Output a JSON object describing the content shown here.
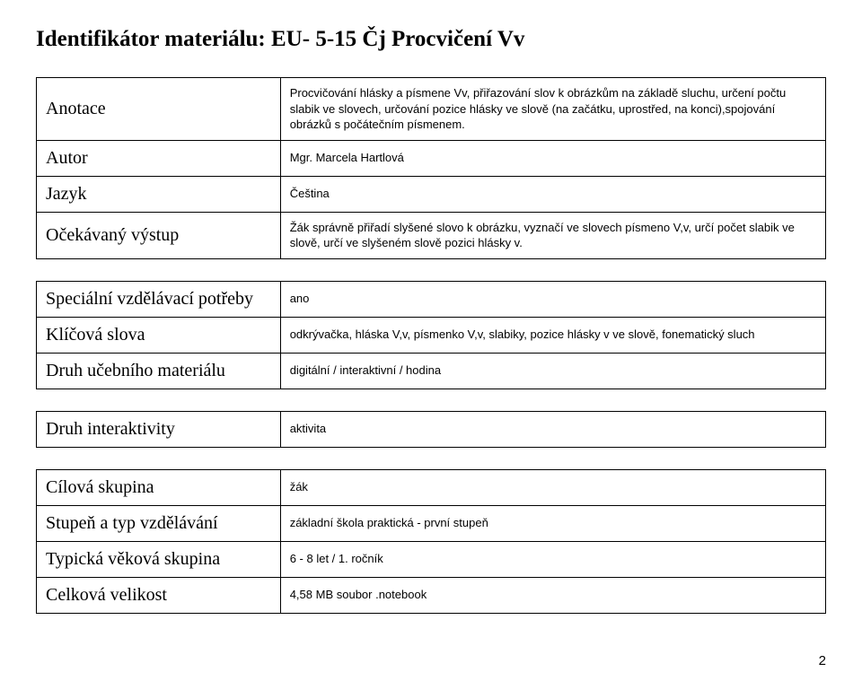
{
  "document": {
    "title": "Identifikátor materiálu: EU- 5-15 Čj  Procvičení Vv",
    "page_number": "2",
    "colors": {
      "background": "#ffffff",
      "text": "#000000",
      "border": "#000000"
    },
    "typography": {
      "title_fontfamily": "Times New Roman",
      "title_fontsize_pt": 19,
      "label_fontfamily": "Times New Roman",
      "label_fontsize_pt": 15,
      "value_fontfamily": "Arial",
      "value_fontsize_pt": 10
    },
    "tables": [
      {
        "rows": [
          {
            "label": "Anotace",
            "value": "Procvičování hlásky a písmene Vv, přiřazování slov k obrázkům na základě sluchu, určení počtu slabik ve slovech, určování pozice hlásky ve slově (na začátku, uprostřed, na konci),spojování obrázků s počátečním písmenem."
          },
          {
            "label": "Autor",
            "value": "Mgr. Marcela Hartlová"
          },
          {
            "label": "Jazyk",
            "value": "Čeština"
          },
          {
            "label": "Očekávaný výstup",
            "value": "Žák správně přiřadí slyšené slovo k obrázku, vyznačí ve slovech písmeno V,v, určí počet slabik ve slově, určí ve slyšeném slově pozici hlásky v."
          }
        ]
      },
      {
        "rows": [
          {
            "label": "Speciální vzdělávací potřeby",
            "value": "ano"
          },
          {
            "label": "Klíčová slova",
            "value": "odkrývačka, hláska V,v, písmenko V,v, slabiky, pozice hlásky v ve slově, fonematický sluch"
          },
          {
            "label": "Druh učebního materiálu",
            "value": "digitální / interaktivní / hodina"
          }
        ]
      },
      {
        "rows": [
          {
            "label": "Druh interaktivity",
            "value": "aktivita"
          }
        ]
      },
      {
        "rows": [
          {
            "label": "Cílová skupina",
            "value": "žák"
          },
          {
            "label": "Stupeň a typ vzdělávání",
            "value": "základní škola praktická - první stupeň"
          },
          {
            "label": "Typická věková skupina",
            "value": "6 - 8 let / 1. ročník"
          },
          {
            "label": "Celková velikost",
            "value": "4,58 MB  soubor .notebook"
          }
        ]
      }
    ]
  }
}
